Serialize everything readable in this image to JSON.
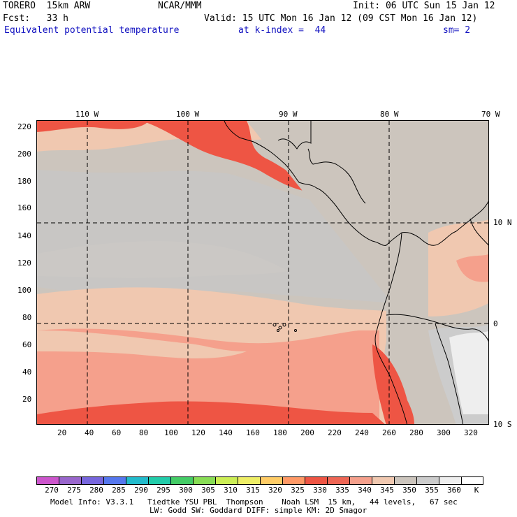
{
  "header": {
    "model": "TORERO  15km ARW",
    "center": "NCAR/MMM",
    "init": "Init: 06 UTC Sun 15 Jan 12",
    "fcst": "Fcst:   33 h",
    "valid": "Valid: 15 UTC Mon 16 Jan 12 (09 CST Mon 16 Jan 12)",
    "field": "Equivalent potential temperature",
    "level": "at k-index =  44",
    "smooth": "sm= 2"
  },
  "top_lon_labels": [
    "110 W",
    "100 W",
    "90 W",
    "80 W",
    "70 W"
  ],
  "right_lat_labels": [
    "10 N",
    "0",
    "10 S"
  ],
  "y_grid_labels": [
    "220",
    "200",
    "180",
    "160",
    "140",
    "120",
    "100",
    "80",
    "60",
    "40",
    "20"
  ],
  "x_grid_labels": [
    "20",
    "40",
    "60",
    "80",
    "100",
    "120",
    "140",
    "160",
    "180",
    "200",
    "220",
    "240",
    "260",
    "280",
    "300",
    "320"
  ],
  "colorbar": {
    "labels": [
      "270",
      "275",
      "280",
      "285",
      "290",
      "295",
      "300",
      "305",
      "310",
      "315",
      "320",
      "325",
      "330",
      "335",
      "340",
      "345",
      "350",
      "355",
      "360",
      "K"
    ],
    "colors": [
      "#cc55cc",
      "#9966cc",
      "#7766dd",
      "#5577ee",
      "#22bbcc",
      "#22ccaa",
      "#44cc66",
      "#88dd55",
      "#ccee55",
      "#eeee66",
      "#ffcc66",
      "#ff9966",
      "#ee5544",
      "#ee6655",
      "#f5a08c",
      "#f0c8b0",
      "#ccc5bd",
      "#cccccc",
      "#eeeeee",
      "#ffffff"
    ]
  },
  "footer": {
    "line1": "Model Info: V3.3.1   Tiedtke YSU PBL  Thompson    Noah LSM  15 km,   44 levels,   67 sec",
    "line2": "LW: Godd SW: Goddard DIFF: simple KM: 2D Smagor"
  }
}
